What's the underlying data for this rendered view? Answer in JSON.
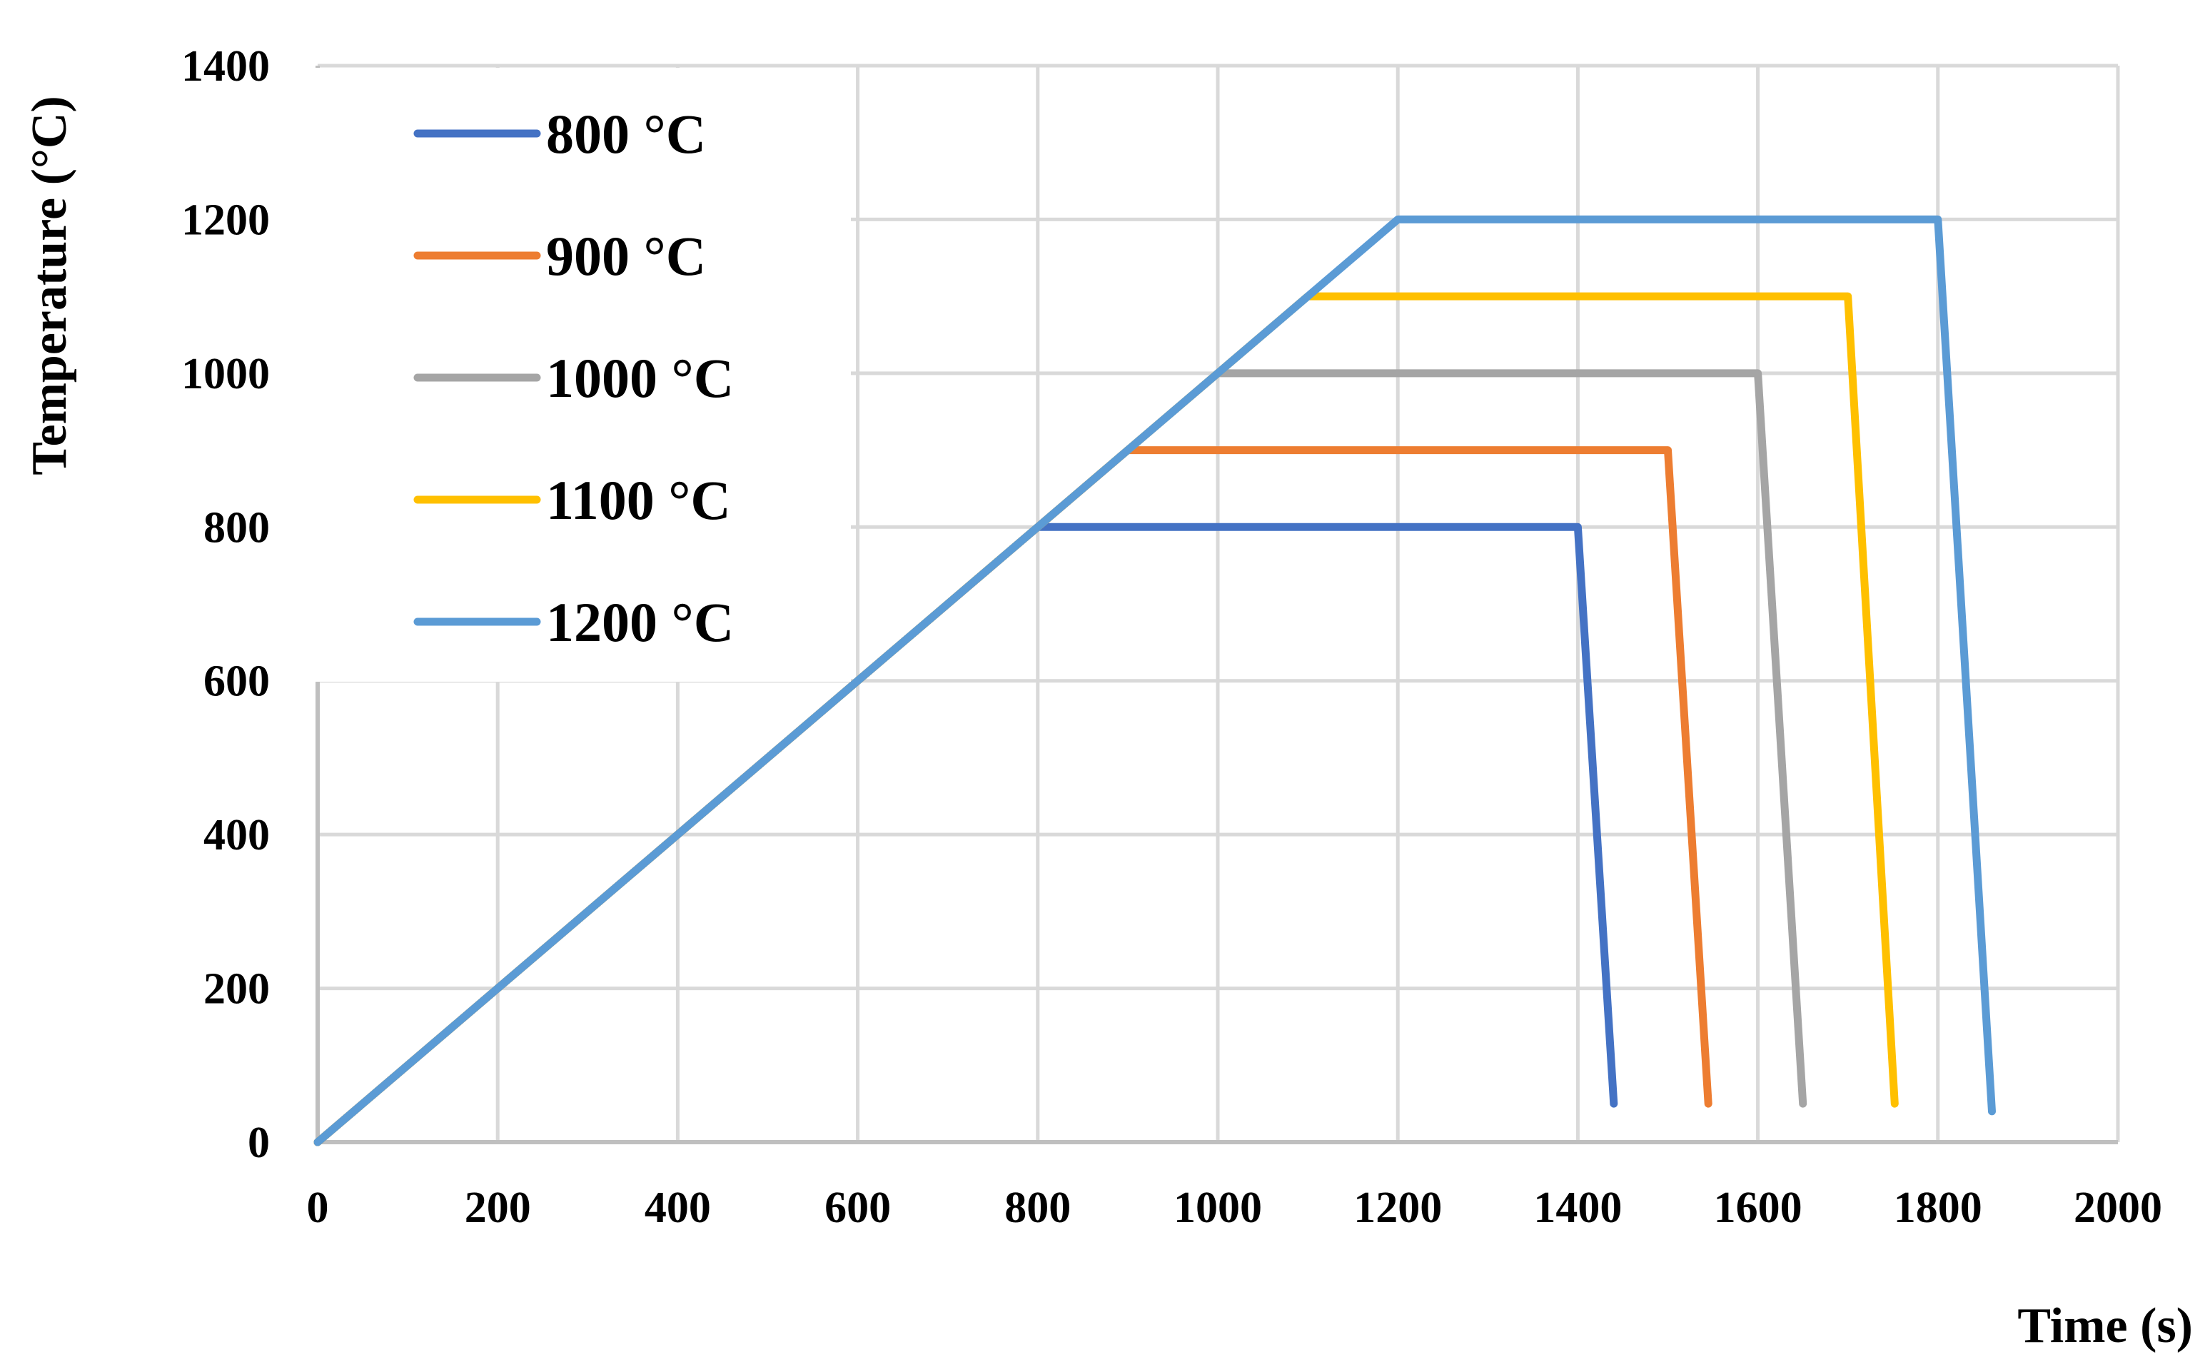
{
  "chart_data": {
    "type": "line",
    "title": "",
    "xlabel": "Time (s)",
    "ylabel": "Temperature (°C)",
    "xlim": [
      0,
      2000
    ],
    "ylim": [
      0,
      1400
    ],
    "xticks": [
      0,
      200,
      400,
      600,
      800,
      1000,
      1200,
      1400,
      1600,
      1800,
      2000
    ],
    "yticks": [
      0,
      200,
      400,
      600,
      800,
      1000,
      1200,
      1400
    ],
    "grid": true,
    "legend_position": "top-left",
    "series": [
      {
        "name": "800 °C",
        "color": "#4472c4",
        "points": [
          [
            0,
            0
          ],
          [
            800,
            800
          ],
          [
            1400,
            800
          ],
          [
            1440,
            50
          ]
        ]
      },
      {
        "name": "900 °C",
        "color": "#ed7d31",
        "points": [
          [
            0,
            0
          ],
          [
            900,
            900
          ],
          [
            1500,
            900
          ],
          [
            1545,
            50
          ]
        ]
      },
      {
        "name": "1000 °C",
        "color": "#a5a5a5",
        "points": [
          [
            0,
            0
          ],
          [
            1000,
            1000
          ],
          [
            1600,
            1000
          ],
          [
            1650,
            50
          ]
        ]
      },
      {
        "name": "1100 °C",
        "color": "#ffc000",
        "points": [
          [
            0,
            0
          ],
          [
            1100,
            1100
          ],
          [
            1700,
            1100
          ],
          [
            1752,
            50
          ]
        ]
      },
      {
        "name": "1200 °C",
        "color": "#5b9bd5",
        "points": [
          [
            0,
            0
          ],
          [
            1200,
            1200
          ],
          [
            1800,
            1200
          ],
          [
            1860,
            40
          ]
        ]
      }
    ]
  }
}
